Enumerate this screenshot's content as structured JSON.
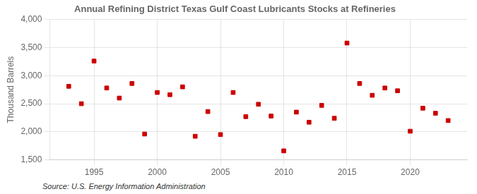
{
  "chart_data": {
    "type": "scatter",
    "title": "Annual Refining District Texas Gulf Coast Lubricants Stocks at Refineries",
    "ylabel": "Thousand Barrels",
    "annotations": [
      "Source: U.S. Energy Information Administration"
    ],
    "x": [
      1993,
      1994,
      1995,
      1996,
      1997,
      1998,
      1999,
      2000,
      2001,
      2002,
      2003,
      2004,
      2005,
      2006,
      2007,
      2008,
      2009,
      2010,
      2011,
      2012,
      2013,
      2014,
      2015,
      2016,
      2017,
      2018,
      2019,
      2020,
      2021,
      2022,
      2023
    ],
    "values": [
      2810,
      2500,
      3260,
      2780,
      2600,
      2860,
      1960,
      2700,
      2660,
      2800,
      1920,
      2360,
      1950,
      2700,
      2270,
      2490,
      2280,
      1660,
      2350,
      2170,
      2470,
      2240,
      3580,
      2860,
      2650,
      2780,
      2730,
      2010,
      2420,
      2330,
      2200
    ],
    "color": "#cc0000",
    "marker": "square",
    "xlim": [
      1991.5,
      2024.5
    ],
    "xticks": [
      1995,
      2000,
      2005,
      2010,
      2015,
      2020
    ],
    "ylim": [
      1500,
      4000
    ],
    "yticks": [
      {
        "value": 1500,
        "label": "1,500"
      },
      {
        "value": 2000,
        "label": "2,000"
      },
      {
        "value": 2500,
        "label": "2,500"
      },
      {
        "value": 3000,
        "label": "3,000"
      },
      {
        "value": 3500,
        "label": "3,500"
      },
      {
        "value": 4000,
        "label": "4,000"
      }
    ],
    "grid": true
  }
}
